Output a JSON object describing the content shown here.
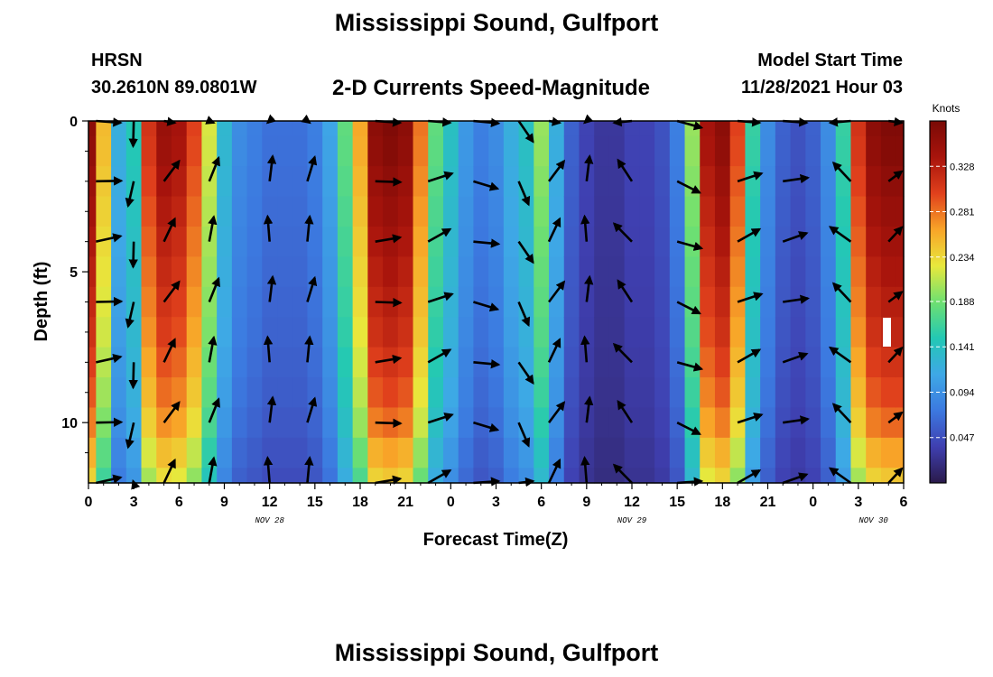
{
  "header": {
    "title": "Mississippi Sound, Gulfport",
    "station": "HRSN",
    "coords": "30.2610N  89.0801W",
    "subtitle": "2-D Currents Speed-Magnitude",
    "model_start_label": "Model Start Time",
    "model_start_value": "11/28/2021 Hour 03",
    "repeat_title": "Mississippi Sound, Gulfport"
  },
  "chart_data": {
    "type": "heatmap",
    "xlabel": "Forecast Time(Z)",
    "ylabel": "Depth (ft)",
    "x_range_hours": [
      0,
      54
    ],
    "y_range_ft": [
      0,
      12
    ],
    "x_ticks": [
      "0",
      "3",
      "6",
      "9",
      "12",
      "15",
      "18",
      "21",
      "0",
      "3",
      "6",
      "9",
      "12",
      "15",
      "18",
      "21",
      "0",
      "3",
      "6"
    ],
    "date_labels": [
      {
        "text": "NOV 28",
        "hour": 12
      },
      {
        "text": "NOV 29",
        "hour": 36
      },
      {
        "text": "NOV 30",
        "hour": 52
      }
    ],
    "y_ticks": [
      "0",
      "5",
      "10"
    ],
    "colorbar": {
      "unit": "Knots",
      "ticks": [
        "0.328",
        "0.281",
        "0.234",
        "0.188",
        "0.141",
        "0.094",
        "0.047"
      ],
      "tick_values": [
        0.328,
        0.281,
        0.234,
        0.188,
        0.141,
        0.094,
        0.047
      ],
      "range": [
        0.0,
        0.375
      ],
      "colormap": [
        "#2a1a4a",
        "#3f3fb0",
        "#3c79e0",
        "#3ea8e6",
        "#23c8b4",
        "#6fe070",
        "#e8e83c",
        "#f8a428",
        "#e0401c",
        "#a8140c",
        "#7a0a06"
      ]
    },
    "speed_by_hour": [
      0.36,
      0.25,
      0.12,
      0.15,
      0.31,
      0.35,
      0.34,
      0.3,
      0.22,
      0.13,
      0.09,
      0.08,
      0.07,
      0.07,
      0.07,
      0.08,
      0.11,
      0.18,
      0.26,
      0.36,
      0.37,
      0.36,
      0.28,
      0.18,
      0.14,
      0.1,
      0.08,
      0.09,
      0.12,
      0.14,
      0.2,
      0.12,
      0.06,
      0.04,
      0.03,
      0.03,
      0.04,
      0.04,
      0.05,
      0.08,
      0.2,
      0.34,
      0.36,
      0.3,
      0.16,
      0.09,
      0.06,
      0.05,
      0.06,
      0.09,
      0.16,
      0.31,
      0.36,
      0.37,
      0.37
    ],
    "depth_factor": [
      1.0,
      0.99,
      0.97,
      0.95,
      0.93,
      0.91,
      0.89,
      0.87,
      0.84,
      0.81,
      0.77,
      0.71,
      0.66
    ],
    "vector_hours": [
      0.5,
      3,
      5,
      8,
      12,
      14.5,
      19,
      22.5,
      25.5,
      28.5,
      30.5,
      33,
      36,
      39,
      43,
      46,
      50.5,
      53
    ],
    "vector_depths": [
      0,
      2,
      4,
      6,
      8,
      10,
      12
    ],
    "vector_dirs_deg": [
      -8,
      96,
      -60,
      -75,
      -90,
      -80,
      -5,
      -25,
      10,
      60,
      -60,
      -90,
      -130,
      20,
      -25,
      -15,
      -140,
      -30
    ]
  }
}
